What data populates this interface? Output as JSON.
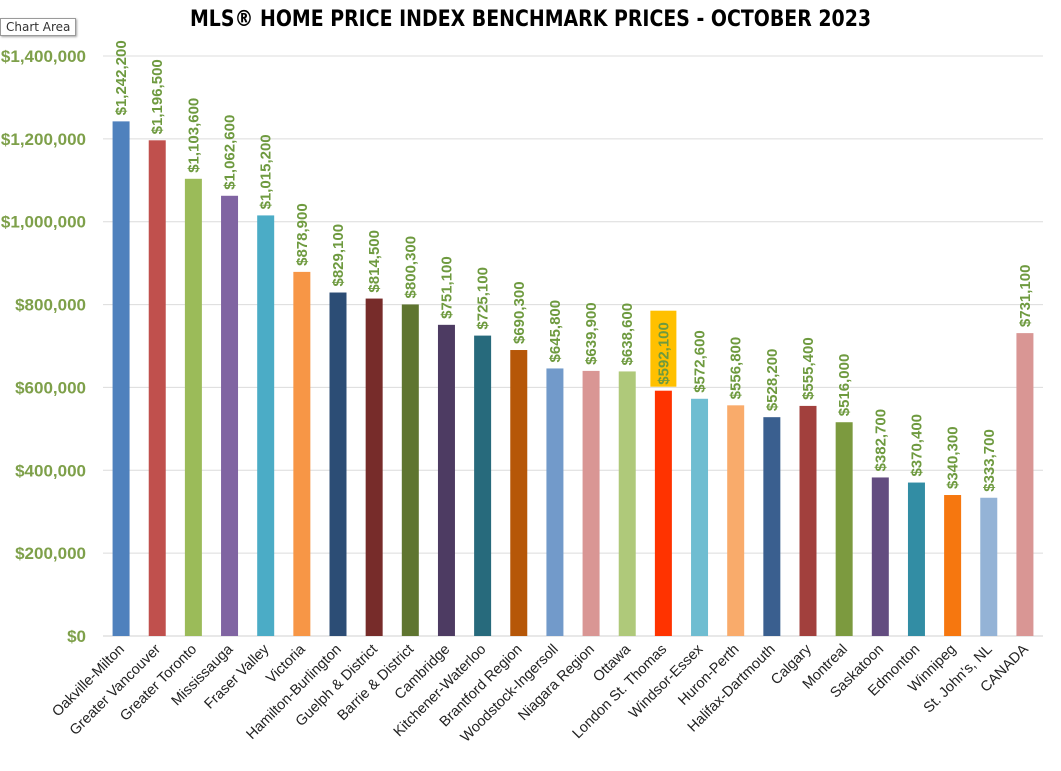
{
  "chart_area_label": "Chart Area",
  "chart_data": {
    "type": "bar",
    "title": "MLS® HOME PRICE INDEX BENCHMARK PRICES - OCTOBER 2023",
    "xlabel": "",
    "ylabel": "",
    "ylim": [
      0,
      1400000
    ],
    "yticks": [
      0,
      200000,
      400000,
      600000,
      800000,
      1000000,
      1200000,
      1400000
    ],
    "ytick_labels": [
      "$0",
      "$200,000",
      "$400,000",
      "$600,000",
      "$800,000",
      "$1,000,000",
      "$1,200,000",
      "$1,400,000"
    ],
    "grid": true,
    "highlighted_category": "London St. Thomas",
    "highlight_color": "#ffc000",
    "categories": [
      "Oakville-Milton",
      "Greater Vancouver",
      "Greater Toronto",
      "Mississauga",
      "Fraser Valley",
      "Victoria",
      "Hamilton-Burlington",
      "Guelph & District",
      "Barrie & District",
      "Cambridge",
      "Kitchener-Waterloo",
      "Brantford Region",
      "Woodstock-Ingersoll",
      "Niagara Region",
      "Ottawa",
      "London St. Thomas",
      "Windsor-Essex",
      "Huron-Perth",
      "Halifax-Dartmouth",
      "Calgary",
      "Montreal",
      "Saskatoon",
      "Edmonton",
      "Winnipeg",
      "St. John's, NL",
      "CANADA"
    ],
    "values": [
      1242200,
      1196500,
      1103600,
      1062600,
      1015200,
      878900,
      829100,
      814500,
      800300,
      751100,
      725100,
      690300,
      645800,
      639900,
      638600,
      592100,
      572600,
      556800,
      528200,
      555400,
      516000,
      382700,
      370400,
      340300,
      333700,
      731100
    ],
    "data_labels": [
      "$1,242,200",
      "$1,196,500",
      "$1,103,600",
      "$1,062,600",
      "$1,015,200",
      "$878,900",
      "$829,100",
      "$814,500",
      "$800,300",
      "$751,100",
      "$725,100",
      "$690,300",
      "$645,800",
      "$639,900",
      "$638,600",
      "$592,100",
      "$572,600",
      "$556,800",
      "$528,200",
      "$555,400",
      "$516,000",
      "$382,700",
      "$370,400",
      "$340,300",
      "$333,700",
      "$731,100"
    ],
    "colors": [
      "#4f81bd",
      "#c0504d",
      "#9bbb59",
      "#8064a2",
      "#4bacc6",
      "#f79646",
      "#2c4d75",
      "#772c2a",
      "#5f7530",
      "#4d3b62",
      "#276a7c",
      "#b65708",
      "#729aca",
      "#d99694",
      "#afc97a",
      "#ff3300",
      "#6fbdd1",
      "#f9ab6b",
      "#3a5f8f",
      "#a2403d",
      "#7c9a3f",
      "#634c80",
      "#328da4",
      "#f6770f",
      "#94b3d6",
      "#d99694"
    ]
  }
}
